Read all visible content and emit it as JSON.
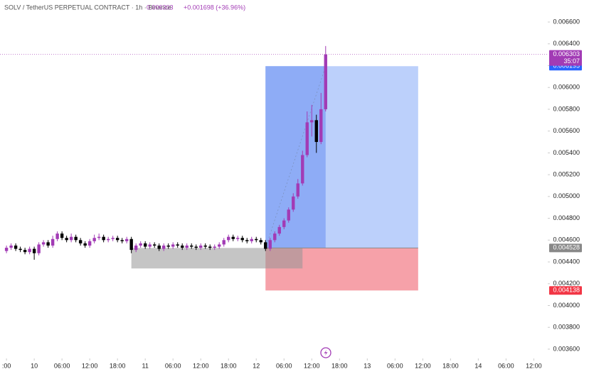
{
  "chart_data": {
    "type": "candlestick",
    "title": "SOLV / TetherUS PERPETUAL CONTRACT · 1h · Binance",
    "last_price": 0.006303,
    "change": "+0.001698 (+36.96%)",
    "countdown": "35:07",
    "up_color": "#a23bb5",
    "down_color": "#000000",
    "x": [
      -6,
      -5,
      -4,
      -3,
      -2,
      -1,
      0,
      1,
      2,
      3,
      4,
      5,
      6,
      7,
      8,
      9,
      10,
      11,
      12,
      13,
      14,
      15,
      16,
      17,
      18,
      19,
      20,
      21,
      22,
      23,
      24,
      25,
      26,
      27,
      28,
      29,
      30,
      31,
      32,
      33,
      34,
      35,
      36,
      37,
      38,
      39,
      40,
      41,
      42,
      43,
      44,
      45,
      46,
      47,
      48,
      49,
      50,
      51,
      52,
      53,
      54,
      55,
      56,
      57,
      58,
      59,
      60,
      61,
      62,
      63
    ],
    "ohlc": [
      [
        0.0045,
        0.00455,
        0.00448,
        0.00453
      ],
      [
        0.00453,
        0.00457,
        0.00451,
        0.00455
      ],
      [
        0.00455,
        0.00457,
        0.0045,
        0.00452
      ],
      [
        0.00452,
        0.00454,
        0.00449,
        0.00451
      ],
      [
        0.00451,
        0.00453,
        0.00447,
        0.00449
      ],
      [
        0.00449,
        0.00454,
        0.00447,
        0.00452
      ],
      [
        0.00452,
        0.00454,
        0.00442,
        0.00448
      ],
      [
        0.00448,
        0.00458,
        0.00446,
        0.00456
      ],
      [
        0.00456,
        0.0046,
        0.00454,
        0.00458
      ],
      [
        0.00458,
        0.0046,
        0.00453,
        0.00455
      ],
      [
        0.00455,
        0.00464,
        0.00453,
        0.00461
      ],
      [
        0.00461,
        0.00468,
        0.00459,
        0.00466
      ],
      [
        0.00466,
        0.00468,
        0.0046,
        0.00462
      ],
      [
        0.00462,
        0.00464,
        0.00458,
        0.0046
      ],
      [
        0.0046,
        0.00466,
        0.00458,
        0.00463
      ],
      [
        0.00463,
        0.00465,
        0.00458,
        0.0046
      ],
      [
        0.0046,
        0.00462,
        0.00455,
        0.00457
      ],
      [
        0.00457,
        0.00459,
        0.00453,
        0.00455
      ],
      [
        0.00455,
        0.00461,
        0.00453,
        0.00459
      ],
      [
        0.00459,
        0.00465,
        0.00457,
        0.00462
      ],
      [
        0.00462,
        0.00466,
        0.0046,
        0.00463
      ],
      [
        0.00463,
        0.00465,
        0.00458,
        0.0046
      ],
      [
        0.0046,
        0.00463,
        0.00458,
        0.00461
      ],
      [
        0.00461,
        0.00464,
        0.00459,
        0.00462
      ],
      [
        0.00462,
        0.00464,
        0.00458,
        0.0046
      ],
      [
        0.0046,
        0.00462,
        0.00457,
        0.00459
      ],
      [
        0.00459,
        0.00463,
        0.00457,
        0.00461
      ],
      [
        0.00461,
        0.00463,
        0.00448,
        0.00451
      ],
      [
        0.00451,
        0.00457,
        0.00449,
        0.00455
      ],
      [
        0.00455,
        0.00459,
        0.00453,
        0.00457
      ],
      [
        0.00457,
        0.00459,
        0.00452,
        0.00454
      ],
      [
        0.00454,
        0.00458,
        0.00452,
        0.00456
      ],
      [
        0.00456,
        0.00458,
        0.00453,
        0.00455
      ],
      [
        0.00455,
        0.00457,
        0.0045,
        0.00452
      ],
      [
        0.00452,
        0.00457,
        0.0045,
        0.00455
      ],
      [
        0.00455,
        0.00457,
        0.00452,
        0.00454
      ],
      [
        0.00454,
        0.00458,
        0.00452,
        0.00456
      ],
      [
        0.00456,
        0.00458,
        0.00453,
        0.00455
      ],
      [
        0.00455,
        0.00457,
        0.00451,
        0.00453
      ],
      [
        0.00453,
        0.00457,
        0.00451,
        0.00455
      ],
      [
        0.00455,
        0.00457,
        0.00452,
        0.00454
      ],
      [
        0.00454,
        0.00456,
        0.00451,
        0.00453
      ],
      [
        0.00453,
        0.00457,
        0.00451,
        0.00455
      ],
      [
        0.00455,
        0.00457,
        0.00452,
        0.00454
      ],
      [
        0.00454,
        0.00456,
        0.00451,
        0.00453
      ],
      [
        0.00453,
        0.00456,
        0.00451,
        0.00454
      ],
      [
        0.00454,
        0.00458,
        0.00452,
        0.00456
      ],
      [
        0.00456,
        0.00462,
        0.00454,
        0.0046
      ],
      [
        0.0046,
        0.00465,
        0.00458,
        0.00463
      ],
      [
        0.00463,
        0.00465,
        0.00459,
        0.00461
      ],
      [
        0.00461,
        0.00464,
        0.00459,
        0.00462
      ],
      [
        0.00462,
        0.00464,
        0.00458,
        0.0046
      ],
      [
        0.0046,
        0.00462,
        0.00457,
        0.00459
      ],
      [
        0.00459,
        0.00463,
        0.00457,
        0.00461
      ],
      [
        0.00461,
        0.00463,
        0.00458,
        0.0046
      ],
      [
        0.0046,
        0.00462,
        0.00456,
        0.00458
      ],
      [
        0.00458,
        0.0046,
        0.0045,
        0.00452
      ],
      [
        0.00452,
        0.00462,
        0.0045,
        0.0046
      ],
      [
        0.0046,
        0.00468,
        0.00458,
        0.00466
      ],
      [
        0.00466,
        0.00474,
        0.00464,
        0.00472
      ],
      [
        0.00472,
        0.0048,
        0.0047,
        0.00478
      ],
      [
        0.00478,
        0.0049,
        0.00476,
        0.00488
      ],
      [
        0.00488,
        0.00503,
        0.00486,
        0.005
      ],
      [
        0.005,
        0.00516,
        0.00498,
        0.00512
      ],
      [
        0.00512,
        0.00542,
        0.0051,
        0.00538
      ],
      [
        0.00538,
        0.00578,
        0.00536,
        0.00568
      ],
      [
        0.00568,
        0.00584,
        0.00555,
        0.0057
      ],
      [
        0.0057,
        0.00575,
        0.0054,
        0.0055
      ],
      [
        0.0055,
        0.00595,
        0.00548,
        0.0058
      ],
      [
        0.0058,
        0.00638,
        0.00578,
        0.006303
      ]
    ],
    "position": {
      "start": 50,
      "split": 63,
      "end": 83,
      "entry": 0.004528,
      "target": 0.006195,
      "stop": 0.004138
    },
    "range_box": {
      "start": 21,
      "end": 58,
      "top": 0.004528,
      "bottom": 0.00434
    },
    "xlim": [
      -7.4,
      110.8
    ],
    "ylim": [
      0.003515,
      0.006802
    ],
    "xticks": [
      {
        "value": -6,
        "label": ":00"
      },
      {
        "value": 0,
        "label": "10"
      },
      {
        "value": 6,
        "label": "06:00"
      },
      {
        "value": 12,
        "label": "12:00"
      },
      {
        "value": 18,
        "label": "18:00"
      },
      {
        "value": 24,
        "label": "11"
      },
      {
        "value": 30,
        "label": "06:00"
      },
      {
        "value": 36,
        "label": "12:00"
      },
      {
        "value": 42,
        "label": "18:00"
      },
      {
        "value": 48,
        "label": "12"
      },
      {
        "value": 54,
        "label": "06:00"
      },
      {
        "value": 60,
        "label": "12:00"
      },
      {
        "value": 66,
        "label": "18:00"
      },
      {
        "value": 72,
        "label": "13"
      },
      {
        "value": 78,
        "label": "06:00"
      },
      {
        "value": 84,
        "label": "12:00"
      },
      {
        "value": 90,
        "label": "18:00"
      },
      {
        "value": 96,
        "label": "14"
      },
      {
        "value": 102,
        "label": "06:00"
      },
      {
        "value": 108,
        "label": "12:00"
      }
    ],
    "yticks": [
      {
        "value": 0.0066,
        "label": "0.006600"
      },
      {
        "value": 0.0064,
        "label": "0.006400"
      },
      {
        "value": 0.0062,
        "label": "0.006200"
      },
      {
        "value": 0.006,
        "label": "0.006000"
      },
      {
        "value": 0.0058,
        "label": "0.005800"
      },
      {
        "value": 0.0056,
        "label": "0.005600"
      },
      {
        "value": 0.0054,
        "label": "0.005400"
      },
      {
        "value": 0.0052,
        "label": "0.005200"
      },
      {
        "value": 0.005,
        "label": "0.005000"
      },
      {
        "value": 0.0048,
        "label": "0.004800"
      },
      {
        "value": 0.0046,
        "label": "0.004600"
      },
      {
        "value": 0.0044,
        "label": "0.004400"
      },
      {
        "value": 0.0042,
        "label": "0.004200"
      },
      {
        "value": 0.004,
        "label": "0.004000"
      },
      {
        "value": 0.0038,
        "label": "0.003800"
      },
      {
        "value": 0.0036,
        "label": "0.003600"
      }
    ]
  }
}
